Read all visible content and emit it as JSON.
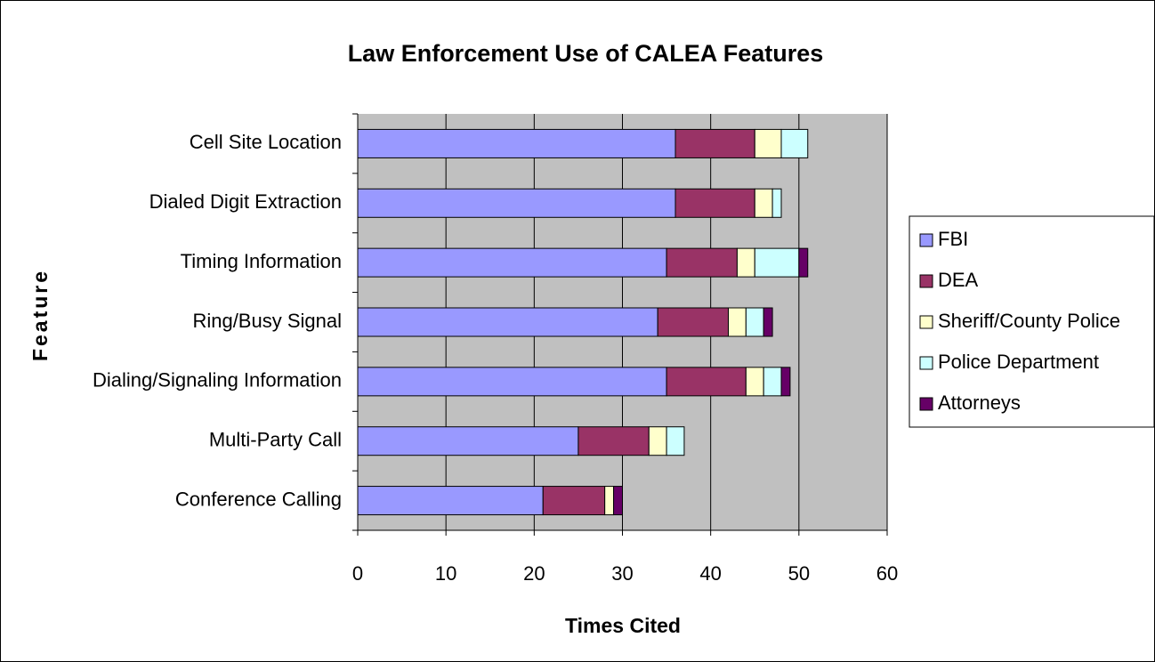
{
  "chart_data": {
    "type": "stacked_bar_horizontal",
    "title": "Law Enforcement Use of CALEA Features",
    "x_label": "Times Cited",
    "y_label": "Feature",
    "categories": [
      "Cell Site Location",
      "Dialed Digit Extraction",
      "Timing Information",
      "Ring/Busy Signal",
      "Dialing/Signaling Information",
      "Multi-Party Call",
      "Conference Calling"
    ],
    "series": [
      {
        "name": "FBI",
        "color": "#9999ff",
        "values": [
          36,
          36,
          35,
          34,
          35,
          25,
          21
        ]
      },
      {
        "name": "DEA",
        "color": "#993366",
        "values": [
          9,
          9,
          8,
          8,
          9,
          8,
          7
        ]
      },
      {
        "name": "Sheriff/County Police",
        "color": "#ffffcc",
        "values": [
          3,
          2,
          2,
          2,
          2,
          2,
          1
        ]
      },
      {
        "name": "Police Department",
        "color": "#ccffff",
        "values": [
          3,
          1,
          5,
          2,
          2,
          2,
          0
        ]
      },
      {
        "name": "Attorneys",
        "color": "#660066",
        "values": [
          0,
          0,
          1,
          1,
          1,
          0,
          1
        ]
      }
    ],
    "xlim": [
      0,
      60
    ],
    "xticks": [
      0,
      10,
      20,
      30,
      40,
      50,
      60
    ],
    "grid": true,
    "plot_background": "#c0c0c0",
    "legend": "right"
  }
}
